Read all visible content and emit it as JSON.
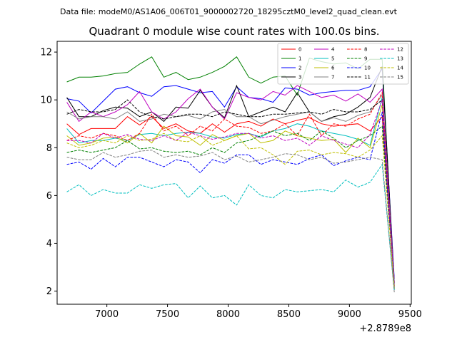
{
  "chart_data": {
    "type": "line",
    "suptitle": "Data file: modeM0/AS1A06_006T01_9000002720_18295cztM0_level2_quad_clean.evt",
    "title": "Quadrant 0 module wise count rates with 100.0s bins.",
    "xlabel": "",
    "ylabel": "",
    "x_offset_label": "+2.8789e8",
    "xlim": [
      6590,
      9510
    ],
    "ylim": [
      1.45,
      12.45
    ],
    "xticks": [
      7000,
      7500,
      8000,
      8500,
      9000,
      9500
    ],
    "yticks": [
      2,
      4,
      6,
      8,
      10,
      12
    ],
    "grid": false,
    "legend_position": "top-right",
    "x": [
      6670,
      6770,
      6870,
      6970,
      7070,
      7170,
      7270,
      7370,
      7470,
      7570,
      7670,
      7770,
      7870,
      7970,
      8070,
      8170,
      8270,
      8370,
      8470,
      8570,
      8670,
      8770,
      8870,
      8970,
      9070,
      9170,
      9270,
      9370
    ],
    "series": [
      {
        "name": "0",
        "color": "#ff0000",
        "dash": "solid",
        "values": [
          9.0,
          8.55,
          8.8,
          8.8,
          8.8,
          9.3,
          8.95,
          9.3,
          8.8,
          9.0,
          8.7,
          8.6,
          9.0,
          8.65,
          9.0,
          9.1,
          8.9,
          9.2,
          9.0,
          9.15,
          9.25,
          9.0,
          8.9,
          8.95,
          9.0,
          8.7,
          9.3,
          2.2
        ]
      },
      {
        "name": "1",
        "color": "#008000",
        "dash": "solid",
        "values": [
          10.75,
          10.95,
          10.95,
          11.0,
          11.1,
          11.15,
          11.5,
          11.8,
          10.95,
          11.15,
          10.85,
          10.95,
          11.15,
          11.4,
          11.8,
          10.95,
          10.7,
          10.95,
          11.0,
          10.2,
          11.75,
          11.6,
          11.5,
          11.55,
          11.3,
          11.7,
          11.7,
          2.1
        ]
      },
      {
        "name": "2",
        "color": "#0000ff",
        "dash": "solid",
        "values": [
          10.05,
          9.95,
          9.45,
          9.95,
          10.45,
          10.55,
          10.3,
          10.15,
          10.55,
          10.6,
          10.45,
          10.3,
          10.35,
          9.7,
          10.55,
          10.1,
          10.05,
          9.9,
          10.5,
          10.45,
          10.2,
          10.3,
          10.35,
          10.4,
          10.4,
          10.55,
          11.3,
          2.5
        ]
      },
      {
        "name": "3",
        "color": "#000000",
        "dash": "solid",
        "values": [
          10.1,
          9.3,
          9.3,
          9.55,
          9.7,
          9.65,
          9.3,
          9.5,
          9.1,
          9.7,
          9.65,
          10.4,
          9.7,
          9.25,
          10.6,
          9.3,
          9.5,
          9.7,
          9.5,
          10.3,
          9.5,
          9.1,
          9.3,
          9.4,
          9.7,
          10.1,
          11.4,
          2.35
        ]
      },
      {
        "name": "4",
        "color": "#bf00bf",
        "dash": "solid",
        "values": [
          9.9,
          9.1,
          9.5,
          9.3,
          9.5,
          9.8,
          10.35,
          9.5,
          9.2,
          9.5,
          10.05,
          10.45,
          9.7,
          9.2,
          10.3,
          10.1,
          10.0,
          10.35,
          10.2,
          10.6,
          10.35,
          10.1,
          10.2,
          9.95,
          10.25,
          9.9,
          10.45,
          2.4
        ]
      },
      {
        "name": "5",
        "color": "#00bfbf",
        "dash": "solid",
        "values": [
          8.8,
          8.2,
          8.3,
          8.3,
          8.4,
          8.3,
          8.55,
          8.6,
          8.5,
          8.6,
          8.65,
          8.6,
          8.45,
          8.4,
          8.55,
          8.6,
          8.45,
          8.7,
          8.8,
          9.0,
          8.9,
          8.7,
          8.6,
          8.5,
          8.35,
          8.1,
          10.1,
          2.3
        ]
      },
      {
        "name": "6",
        "color": "#bfbf00",
        "dash": "solid",
        "values": [
          8.5,
          8.1,
          8.2,
          8.4,
          8.45,
          8.2,
          8.6,
          8.2,
          8.9,
          8.5,
          8.45,
          8.1,
          8.55,
          8.3,
          8.5,
          8.6,
          8.2,
          8.3,
          8.7,
          8.5,
          8.4,
          8.3,
          8.35,
          7.8,
          8.4,
          8.0,
          9.8,
          2.25
        ]
      },
      {
        "name": "7",
        "color": "#808080",
        "dash": "solid",
        "values": [
          9.5,
          9.2,
          9.3,
          9.3,
          9.2,
          9.5,
          9.1,
          9.2,
          9.4,
          9.3,
          9.35,
          9.2,
          9.5,
          9.6,
          9.3,
          9.3,
          9.0,
          9.15,
          9.3,
          9.4,
          9.5,
          9.1,
          9.25,
          9.1,
          9.35,
          9.5,
          10.2,
          2.3
        ]
      },
      {
        "name": "8",
        "color": "#ff0000",
        "dash": "dashed",
        "values": [
          8.3,
          8.5,
          8.4,
          8.6,
          8.5,
          8.3,
          8.6,
          9.4,
          8.7,
          8.9,
          8.5,
          8.9,
          8.7,
          9.2,
          8.9,
          8.85,
          8.6,
          8.7,
          9.0,
          8.5,
          9.4,
          8.5,
          9.0,
          8.9,
          9.2,
          9.4,
          10.3,
          2.15
        ]
      },
      {
        "name": "9",
        "color": "#008000",
        "dash": "dashed",
        "values": [
          7.8,
          7.9,
          7.8,
          7.9,
          8.0,
          8.3,
          7.95,
          8.0,
          7.85,
          7.8,
          7.85,
          7.7,
          8.0,
          7.8,
          8.2,
          8.3,
          8.5,
          8.7,
          8.5,
          8.6,
          8.3,
          8.7,
          8.4,
          8.0,
          8.3,
          8.5,
          8.9,
          2.1
        ]
      },
      {
        "name": "10",
        "color": "#0000ff",
        "dash": "dashed",
        "values": [
          7.3,
          7.4,
          7.1,
          7.55,
          7.2,
          7.6,
          7.6,
          7.4,
          7.2,
          7.5,
          7.4,
          6.95,
          7.5,
          7.35,
          7.7,
          7.7,
          7.3,
          7.5,
          7.4,
          7.3,
          7.55,
          7.7,
          7.25,
          7.45,
          7.6,
          7.5,
          9.5,
          2.05
        ]
      },
      {
        "name": "11",
        "color": "#000000",
        "dash": "dashed",
        "values": [
          9.4,
          9.6,
          9.5,
          9.5,
          9.6,
          10.0,
          9.5,
          9.3,
          9.2,
          9.3,
          9.4,
          9.4,
          9.3,
          9.5,
          9.4,
          9.3,
          9.3,
          9.4,
          9.4,
          9.45,
          9.5,
          9.4,
          9.6,
          9.5,
          9.5,
          9.6,
          10.0,
          2.2
        ]
      },
      {
        "name": "12",
        "color": "#bf00bf",
        "dash": "dashed",
        "values": [
          8.3,
          8.3,
          8.2,
          8.6,
          8.4,
          8.55,
          8.35,
          8.3,
          8.5,
          8.3,
          8.65,
          8.5,
          8.35,
          8.45,
          8.6,
          8.6,
          8.4,
          8.5,
          8.3,
          8.4,
          8.1,
          8.5,
          8.3,
          8.15,
          8.0,
          8.55,
          10.0,
          2.2
        ]
      },
      {
        "name": "13",
        "color": "#00bfbf",
        "dash": "dashed",
        "values": [
          6.15,
          6.45,
          6.0,
          6.25,
          6.1,
          6.1,
          6.45,
          6.3,
          6.45,
          6.5,
          5.9,
          6.4,
          5.9,
          6.0,
          5.6,
          6.45,
          6.0,
          5.9,
          6.25,
          6.15,
          6.2,
          6.25,
          6.15,
          6.65,
          6.35,
          6.55,
          7.3,
          2.0
        ]
      },
      {
        "name": "14",
        "color": "#bfbf00",
        "dash": "dashed",
        "values": [
          8.2,
          8.0,
          8.1,
          8.3,
          8.2,
          8.5,
          8.3,
          8.35,
          8.6,
          8.3,
          8.25,
          8.5,
          8.1,
          8.3,
          8.5,
          7.95,
          8.0,
          7.7,
          7.3,
          7.85,
          7.9,
          7.7,
          7.8,
          7.75,
          7.6,
          7.9,
          8.5,
          2.1
        ]
      },
      {
        "name": "15",
        "color": "#808080",
        "dash": "dashed",
        "values": [
          7.6,
          7.5,
          7.5,
          7.8,
          7.6,
          7.7,
          7.85,
          7.9,
          7.6,
          7.7,
          7.6,
          7.65,
          7.8,
          7.5,
          7.65,
          7.4,
          7.5,
          7.6,
          7.75,
          7.7,
          7.5,
          7.6,
          7.35,
          7.4,
          7.5,
          7.6,
          7.5,
          1.95
        ]
      }
    ]
  }
}
